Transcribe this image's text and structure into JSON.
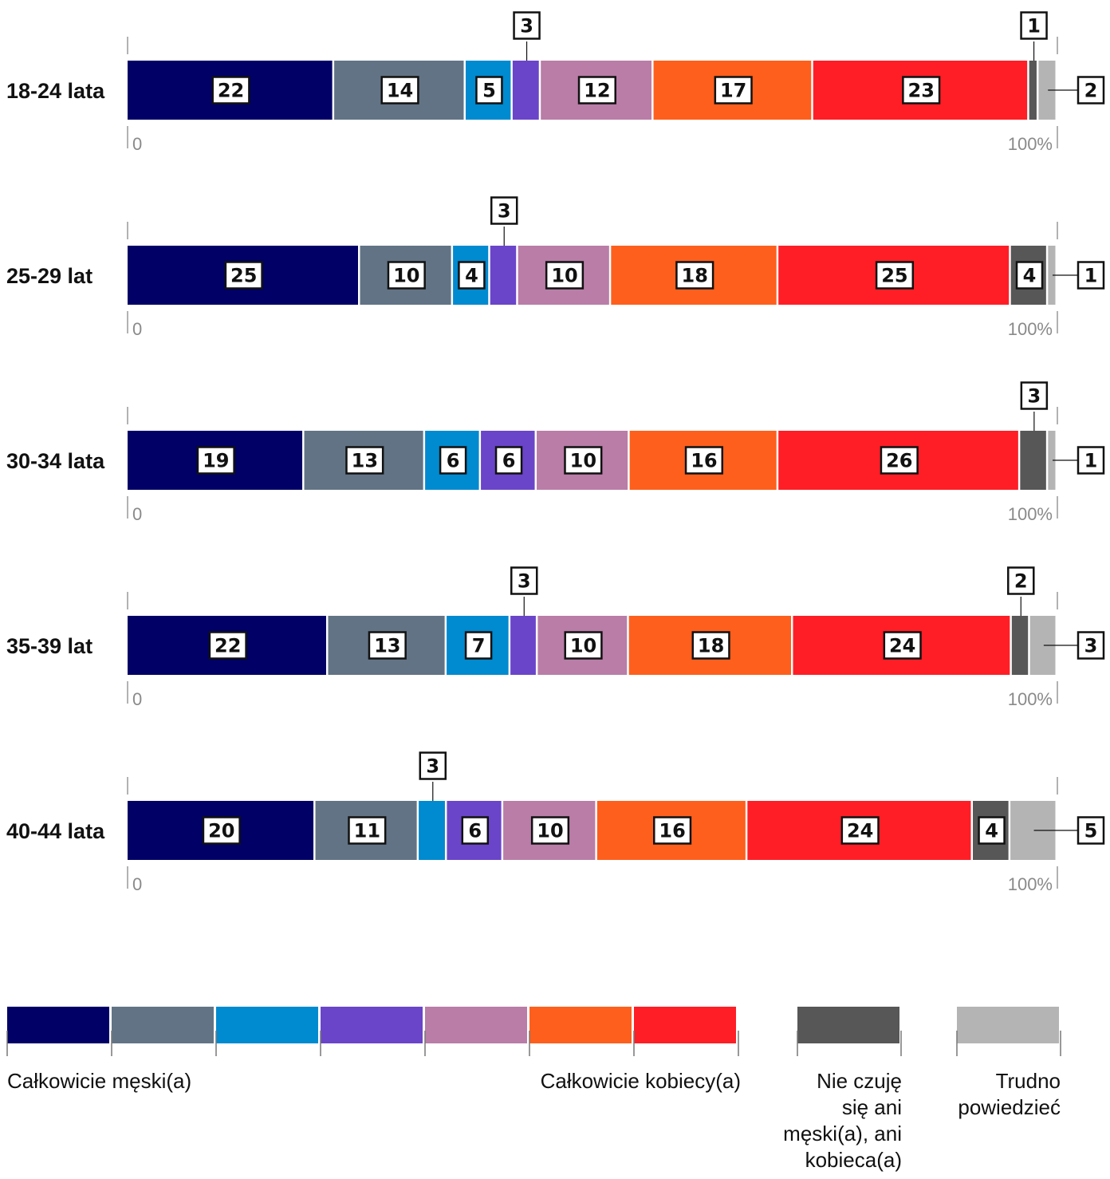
{
  "colors": {
    "scale": [
      "#000066",
      "#627385",
      "#008ad0",
      "#6a45c9",
      "#b97da7",
      "#fe5f1d",
      "#ff1e26"
    ],
    "neither": "#575757",
    "hard_to_say": "#b4b4b4"
  },
  "chart_data": {
    "type": "bar",
    "stacked": true,
    "orientation": "horizontal",
    "normalized": "percent",
    "xlim": [
      0,
      100
    ],
    "x_tick_labels": [
      "0",
      "100%"
    ],
    "categories": [
      "18-24 lata",
      "25-29 lat",
      "30-34 lata",
      "35-39 lat",
      "40-44 lata"
    ],
    "series": [
      {
        "name": "Całkowicie męski(a)",
        "values": [
          22,
          25,
          19,
          22,
          20
        ]
      },
      {
        "values": [
          14,
          10,
          13,
          13,
          11
        ]
      },
      {
        "values": [
          5,
          4,
          6,
          7,
          3
        ]
      },
      {
        "values": [
          3,
          3,
          6,
          3,
          6
        ]
      },
      {
        "values": [
          12,
          10,
          10,
          10,
          10
        ]
      },
      {
        "values": [
          17,
          18,
          16,
          18,
          16
        ]
      },
      {
        "name": "Całkowicie kobiecy(a)",
        "values": [
          23,
          25,
          26,
          24,
          24
        ]
      },
      {
        "name": "Nie czuję się ani męski(a), ani kobieca(a)",
        "values": [
          1,
          4,
          3,
          2,
          4
        ]
      },
      {
        "name": "Trudno powiedzieć",
        "values": [
          2,
          1,
          1,
          3,
          5
        ]
      }
    ],
    "legend": {
      "placement": "bottom",
      "scale_left_label": "Całkowicie męski(a)",
      "scale_right_label": "Całkowicie kobiecy(a)",
      "neither_label_lines": [
        "Nie czuję",
        "się ani",
        "męski(a), ani",
        "kobieca(a)"
      ],
      "hard_label_lines": [
        "Trudno",
        "powiedzieć"
      ]
    }
  }
}
